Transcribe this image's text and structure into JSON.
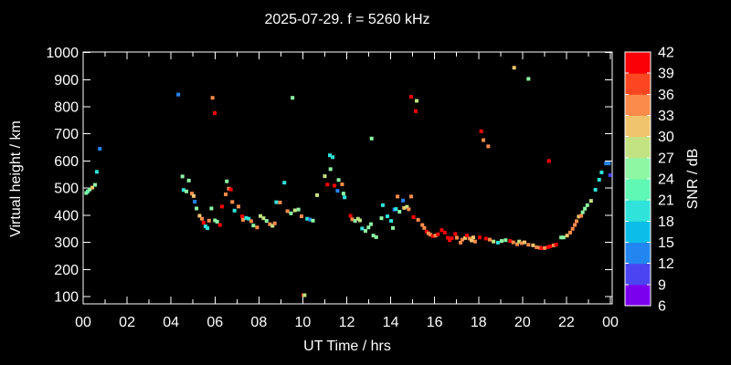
{
  "title": "2025-07-29. f = 5260 kHz",
  "chart_data": {
    "type": "scatter",
    "title": "2025-07-29. f = 5260 kHz",
    "xlabel": "UT Time / hrs",
    "ylabel": "Virtual height / km",
    "x_unit": "hours UT",
    "xlim": [
      0,
      24
    ],
    "ylim": [
      100,
      1000
    ],
    "x_major_ticks": [
      0,
      2,
      4,
      6,
      8,
      10,
      12,
      14,
      16,
      18,
      20,
      22,
      24
    ],
    "x_major_tick_labels": [
      "00",
      "02",
      "04",
      "06",
      "08",
      "10",
      "12",
      "14",
      "16",
      "18",
      "20",
      "22",
      "00"
    ],
    "x_minor_step": 1,
    "y_ticks": [
      100,
      200,
      300,
      400,
      500,
      600,
      700,
      800,
      900,
      1000
    ],
    "y_tick_labels": [
      "100",
      "200",
      "300",
      "400",
      "500",
      "600",
      "700",
      "800",
      "900",
      "1000"
    ],
    "grid": false,
    "background_color": "#000000",
    "text_color": "#ffffff",
    "marker": "square",
    "marker_size_px": 4,
    "colorbar": {
      "label": "SNR / dB",
      "min": 6,
      "max": 42,
      "step": 3,
      "tick_labels": [
        "42",
        "39",
        "36",
        "33",
        "30",
        "27",
        "24",
        "21",
        "18",
        "15",
        "12",
        "9",
        "6"
      ],
      "segment_colors_low_to_high": [
        "#7b00ee",
        "#4b45f1",
        "#2286f0",
        "#0cbde9",
        "#2fe3da",
        "#5ff8b4",
        "#8df7a4",
        "#c3e383",
        "#f0c46d",
        "#fa8b4b",
        "#fc4621",
        "#fb0007"
      ]
    },
    "points_format": [
      "time_hrs",
      "virtual_height_km",
      "snr_db"
    ],
    "points": [
      [
        0.14,
        482,
        25
      ],
      [
        0.21,
        488,
        22
      ],
      [
        0.3,
        495,
        25
      ],
      [
        0.42,
        502,
        31
      ],
      [
        0.54,
        512,
        25
      ],
      [
        0.62,
        560,
        19
      ],
      [
        0.76,
        645,
        13
      ],
      [
        4.33,
        845,
        13
      ],
      [
        4.52,
        543,
        25
      ],
      [
        4.57,
        493,
        19
      ],
      [
        4.7,
        488,
        25
      ],
      [
        4.81,
        528,
        25
      ],
      [
        4.95,
        480,
        34
      ],
      [
        5.03,
        471,
        31
      ],
      [
        5.08,
        450,
        13
      ],
      [
        5.16,
        425,
        25
      ],
      [
        5.3,
        398,
        31
      ],
      [
        5.41,
        387,
        34
      ],
      [
        5.48,
        372,
        41
      ],
      [
        5.57,
        359,
        19
      ],
      [
        5.66,
        352,
        19
      ],
      [
        5.73,
        380,
        34
      ],
      [
        5.84,
        425,
        25
      ],
      [
        5.89,
        833,
        34
      ],
      [
        5.99,
        777,
        41
      ],
      [
        6.0,
        381,
        25
      ],
      [
        6.1,
        376,
        25
      ],
      [
        6.23,
        364,
        41
      ],
      [
        6.32,
        432,
        41
      ],
      [
        6.49,
        477,
        34
      ],
      [
        6.54,
        525,
        25
      ],
      [
        6.63,
        498,
        34
      ],
      [
        6.72,
        495,
        41
      ],
      [
        6.79,
        449,
        34
      ],
      [
        6.89,
        417,
        19
      ],
      [
        7.07,
        432,
        34
      ],
      [
        7.24,
        396,
        41
      ],
      [
        7.28,
        383,
        34
      ],
      [
        7.42,
        390,
        19
      ],
      [
        7.54,
        387,
        19
      ],
      [
        7.65,
        378,
        34
      ],
      [
        7.75,
        362,
        25
      ],
      [
        7.92,
        355,
        34
      ],
      [
        8.07,
        397,
        28
      ],
      [
        8.21,
        389,
        28
      ],
      [
        8.35,
        379,
        25
      ],
      [
        8.5,
        367,
        34
      ],
      [
        8.62,
        361,
        28
      ],
      [
        8.72,
        370,
        34
      ],
      [
        8.79,
        448,
        19
      ],
      [
        8.96,
        447,
        34
      ],
      [
        9.16,
        520,
        19
      ],
      [
        9.3,
        415,
        34
      ],
      [
        9.46,
        407,
        25
      ],
      [
        9.53,
        833,
        25
      ],
      [
        9.64,
        418,
        28
      ],
      [
        9.8,
        421,
        25
      ],
      [
        9.94,
        396,
        34
      ],
      [
        10.03,
        105,
        37
      ],
      [
        10.08,
        105,
        28
      ],
      [
        10.2,
        387,
        19
      ],
      [
        10.33,
        384,
        13
      ],
      [
        10.46,
        380,
        25
      ],
      [
        10.65,
        474,
        28
      ],
      [
        11.0,
        544,
        28
      ],
      [
        11.12,
        513,
        41
      ],
      [
        11.23,
        621,
        19
      ],
      [
        11.26,
        570,
        25
      ],
      [
        11.36,
        614,
        19
      ],
      [
        11.44,
        509,
        41
      ],
      [
        11.58,
        490,
        13
      ],
      [
        11.63,
        530,
        25
      ],
      [
        11.79,
        514,
        34
      ],
      [
        11.85,
        480,
        25
      ],
      [
        11.9,
        466,
        19
      ],
      [
        12.17,
        398,
        41
      ],
      [
        12.25,
        385,
        34
      ],
      [
        12.38,
        379,
        25
      ],
      [
        12.51,
        387,
        28
      ],
      [
        12.6,
        381,
        28
      ],
      [
        12.7,
        351,
        19
      ],
      [
        12.85,
        342,
        25
      ],
      [
        12.99,
        355,
        25
      ],
      [
        13.1,
        367,
        25
      ],
      [
        13.13,
        683,
        25
      ],
      [
        13.21,
        325,
        25
      ],
      [
        13.34,
        319,
        25
      ],
      [
        13.58,
        389,
        25
      ],
      [
        13.64,
        437,
        19
      ],
      [
        13.85,
        396,
        19
      ],
      [
        14.02,
        379,
        19
      ],
      [
        14.1,
        353,
        25
      ],
      [
        14.17,
        421,
        13
      ],
      [
        14.24,
        423,
        19
      ],
      [
        14.31,
        469,
        34
      ],
      [
        14.4,
        413,
        25
      ],
      [
        14.56,
        454,
        13
      ],
      [
        14.61,
        427,
        31
      ],
      [
        14.74,
        431,
        28
      ],
      [
        14.82,
        422,
        34
      ],
      [
        14.93,
        469,
        34
      ],
      [
        14.93,
        837,
        41
      ],
      [
        15.04,
        393,
        41
      ],
      [
        15.14,
        784,
        41
      ],
      [
        15.18,
        822,
        28
      ],
      [
        15.25,
        383,
        34
      ],
      [
        15.44,
        364,
        34
      ],
      [
        15.53,
        353,
        34
      ],
      [
        15.63,
        340,
        41
      ],
      [
        15.72,
        333,
        34
      ],
      [
        15.81,
        328,
        34
      ],
      [
        15.92,
        323,
        41
      ],
      [
        16.04,
        325,
        34
      ],
      [
        16.15,
        330,
        41
      ],
      [
        16.32,
        345,
        41
      ],
      [
        16.46,
        336,
        41
      ],
      [
        16.6,
        317,
        41
      ],
      [
        16.68,
        308,
        41
      ],
      [
        16.78,
        315,
        41
      ],
      [
        16.94,
        331,
        41
      ],
      [
        17.01,
        317,
        34
      ],
      [
        17.18,
        299,
        34
      ],
      [
        17.26,
        310,
        34
      ],
      [
        17.39,
        316,
        31
      ],
      [
        17.47,
        325,
        41
      ],
      [
        17.59,
        314,
        34
      ],
      [
        17.68,
        307,
        31
      ],
      [
        17.76,
        318,
        31
      ],
      [
        17.84,
        303,
        34
      ],
      [
        18.05,
        318,
        41
      ],
      [
        18.12,
        710,
        41
      ],
      [
        18.22,
        677,
        34
      ],
      [
        18.33,
        314,
        41
      ],
      [
        18.44,
        654,
        34
      ],
      [
        18.51,
        310,
        34
      ],
      [
        18.68,
        303,
        28
      ],
      [
        18.88,
        299,
        19
      ],
      [
        19.05,
        305,
        25
      ],
      [
        19.23,
        308,
        25
      ],
      [
        19.44,
        305,
        41
      ],
      [
        19.58,
        300,
        34
      ],
      [
        19.62,
        944,
        31
      ],
      [
        19.76,
        293,
        34
      ],
      [
        19.85,
        303,
        28
      ],
      [
        19.96,
        297,
        34
      ],
      [
        20.09,
        300,
        31
      ],
      [
        20.27,
        291,
        34
      ],
      [
        20.27,
        903,
        25
      ],
      [
        20.48,
        289,
        31
      ],
      [
        20.64,
        282,
        34
      ],
      [
        20.79,
        280,
        34
      ],
      [
        20.87,
        278,
        41
      ],
      [
        21.01,
        279,
        34
      ],
      [
        21.17,
        283,
        41
      ],
      [
        21.2,
        600,
        41
      ],
      [
        21.27,
        285,
        41
      ],
      [
        21.42,
        289,
        34
      ],
      [
        21.53,
        292,
        41
      ],
      [
        21.76,
        318,
        25
      ],
      [
        21.87,
        318,
        25
      ],
      [
        22.03,
        325,
        31
      ],
      [
        22.17,
        336,
        34
      ],
      [
        22.28,
        350,
        34
      ],
      [
        22.38,
        364,
        34
      ],
      [
        22.46,
        378,
        34
      ],
      [
        22.56,
        395,
        31
      ],
      [
        22.67,
        398,
        34
      ],
      [
        22.74,
        411,
        25
      ],
      [
        22.84,
        424,
        25
      ],
      [
        22.95,
        437,
        25
      ],
      [
        23.12,
        453,
        28
      ],
      [
        23.32,
        494,
        19
      ],
      [
        23.49,
        531,
        19
      ],
      [
        23.6,
        558,
        19
      ],
      [
        23.8,
        591,
        13
      ],
      [
        23.93,
        591,
        13
      ],
      [
        23.99,
        548,
        10
      ]
    ]
  }
}
